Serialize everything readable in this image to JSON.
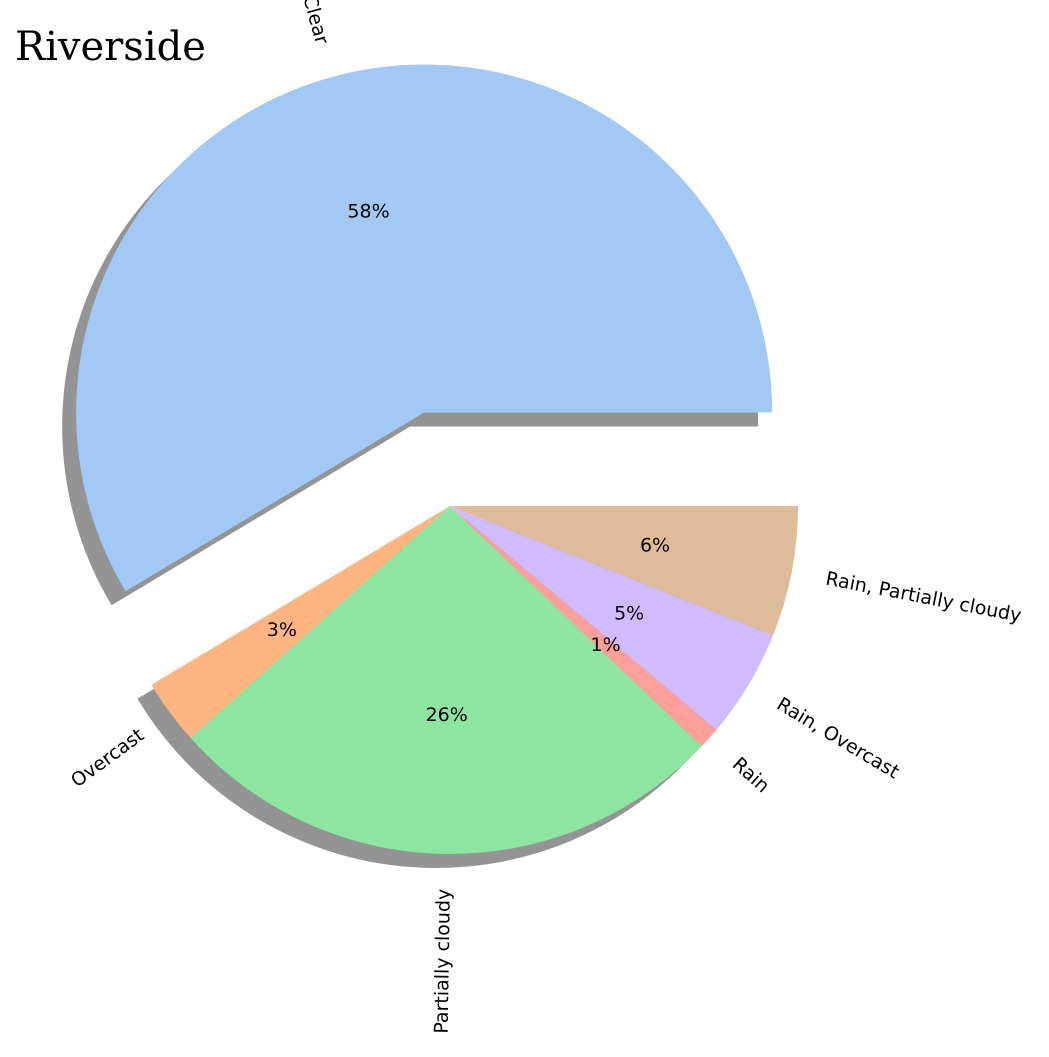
{
  "chart_data": {
    "type": "pie",
    "title": "Riverside",
    "categories": [
      "Clear",
      "Overcast",
      "Partially cloudy",
      "Rain",
      "Rain, Overcast",
      "Rain, Partially cloudy"
    ],
    "values": [
      58,
      3,
      26,
      1,
      5,
      6
    ],
    "value_labels": [
      "58%",
      "3%",
      "26%",
      "1%",
      "5%",
      "6%"
    ],
    "colors": [
      "#a1c9f4",
      "#ffb482",
      "#8de5a1",
      "#ff9f9b",
      "#d0bbff",
      "#debb9b"
    ],
    "exploded": [
      "Clear"
    ],
    "shadow": true,
    "legend": "none"
  }
}
